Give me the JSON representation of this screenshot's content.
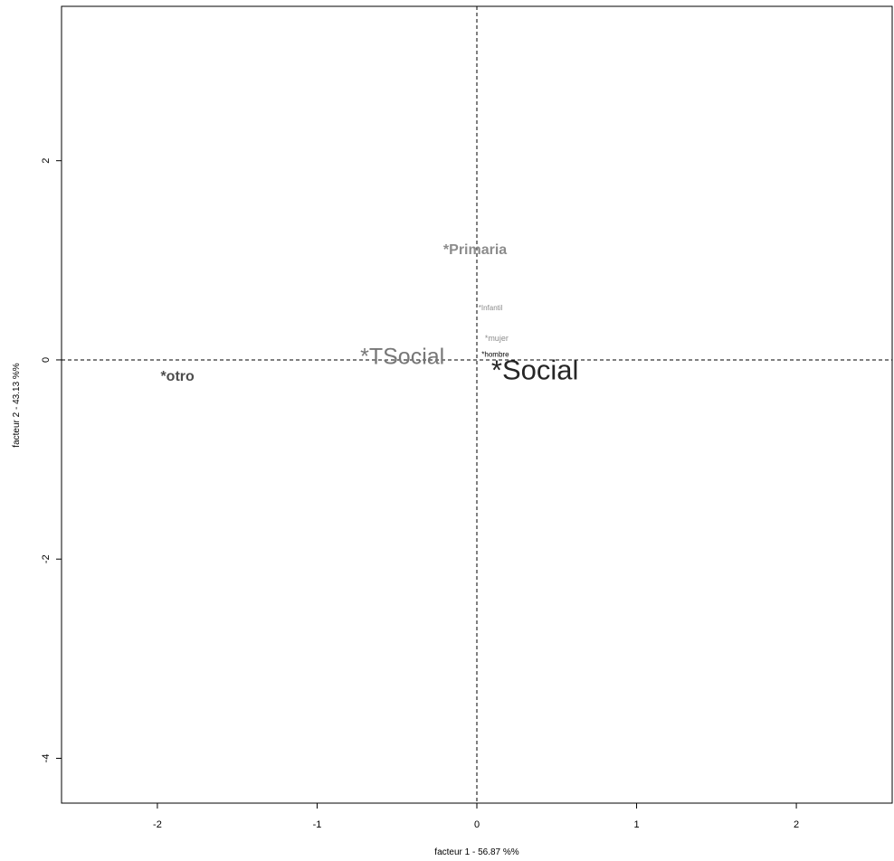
{
  "chart_data": {
    "type": "scatter",
    "title": "",
    "xlabel": "facteur  1  - 56.87 %%",
    "ylabel": "facteur  2  - 43.13 %%",
    "xlim": [
      -2.6,
      2.6
    ],
    "ylim": [
      -4.45,
      3.55
    ],
    "xticks": [
      -2,
      -1,
      0,
      1,
      2
    ],
    "yticks": [
      -4,
      -2,
      0,
      2
    ],
    "xtick_labels": [
      "-2",
      "-1",
      "0",
      "1",
      "2"
    ],
    "ytick_labels": [
      "-4",
      "-2",
      "0",
      "2"
    ],
    "grid": false,
    "reference_lines": {
      "x": 0,
      "y": 0,
      "style": "dashed"
    },
    "points": [
      {
        "label": "*Primaria",
        "x": -0.21,
        "y": 1.1,
        "size": 1.35,
        "color": "#8c8c8c",
        "bold": true
      },
      {
        "label": "*Infantil",
        "x": 0.01,
        "y": 0.52,
        "size": 0.7,
        "color": "#8c8c8c",
        "bold": false
      },
      {
        "label": "*mujer",
        "x": 0.05,
        "y": 0.21,
        "size": 0.75,
        "color": "#8c8c8c",
        "bold": false
      },
      {
        "label": "*hombre",
        "x": 0.03,
        "y": 0.05,
        "size": 0.7,
        "color": "#000000",
        "bold": false
      },
      {
        "label": "*TSocial",
        "x": -0.73,
        "y": 0.02,
        "size": 2.05,
        "color": "#777777",
        "bold": false
      },
      {
        "label": "*Social",
        "x": 0.09,
        "y": -0.12,
        "size": 2.6,
        "color": "#262626",
        "bold": false
      },
      {
        "label": "*otro",
        "x": -1.98,
        "y": -0.17,
        "size": 1.35,
        "color": "#4d4d4d",
        "bold": true
      }
    ]
  }
}
